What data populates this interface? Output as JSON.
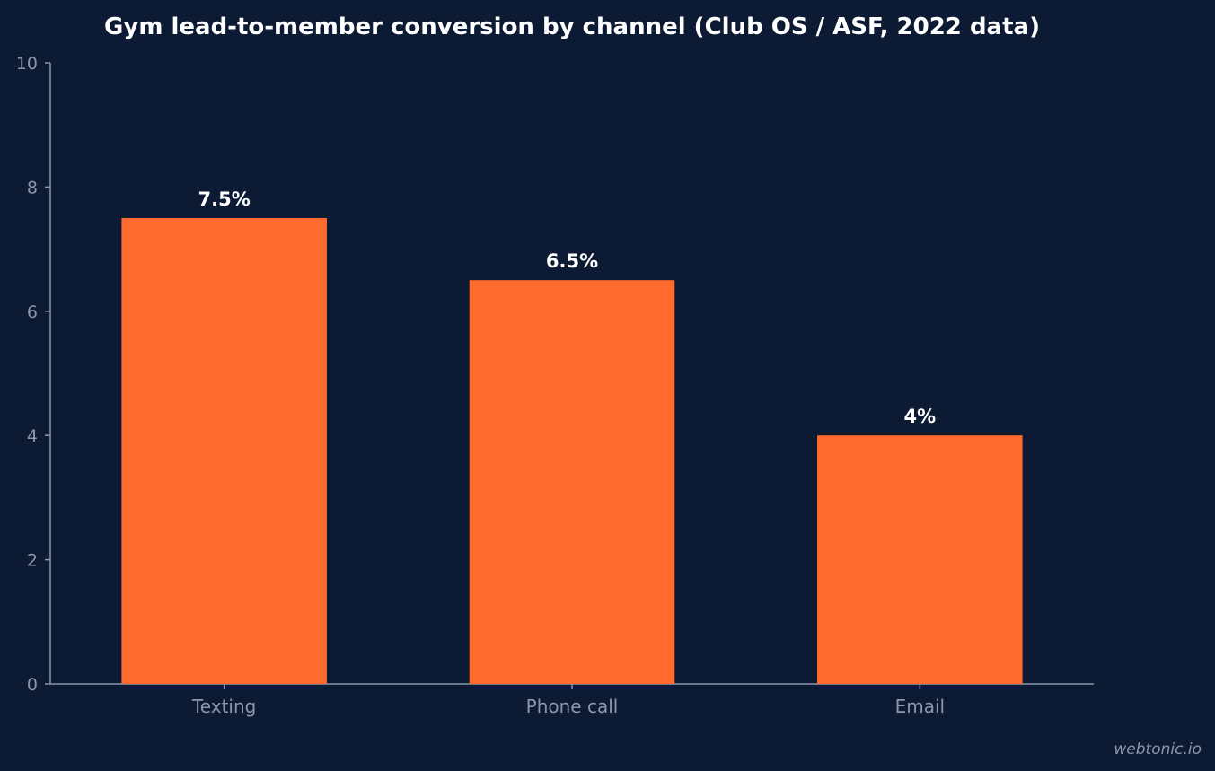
{
  "chart_data": {
    "type": "bar",
    "title": "Gym lead-to-member conversion by channel (Club OS / ASF, 2022 data)",
    "categories": [
      "Texting",
      "Phone call",
      "Email"
    ],
    "values": [
      7.5,
      6.5,
      4
    ],
    "data_labels": [
      "7.5%",
      "6.5%",
      "4%"
    ],
    "xlabel": "",
    "ylabel": "",
    "ylim": [
      0,
      10
    ],
    "yticks": [
      "0",
      "2",
      "4",
      "6",
      "8",
      "10"
    ],
    "grid": false,
    "legend": "none",
    "bar_color": "#ff6b2e",
    "background_color": "#0c1b33"
  },
  "watermark": "webtonic.io"
}
